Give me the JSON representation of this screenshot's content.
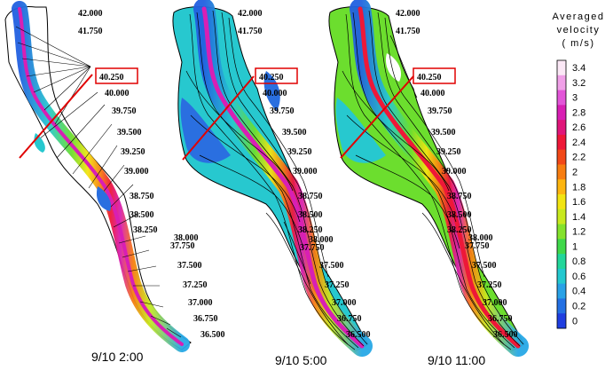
{
  "panels": [
    {
      "time_label": "9/10 2:00",
      "section_labels": [
        "42.000",
        "41.750",
        "40.250",
        "40.000",
        "39.750",
        "39.500",
        "39.250",
        "39.000",
        "38.750",
        "38.500",
        "38.250",
        "38.000",
        "37.750",
        "37.500",
        "37.250",
        "37.000",
        "36.750",
        "36.500"
      ],
      "highlighted_section": "40.250",
      "flow_shading": "sparse",
      "has_streamlines": false
    },
    {
      "time_label": "9/10 5:00",
      "section_labels": [
        "42.000",
        "41.750",
        "40.250",
        "40.000",
        "39.750",
        "39.500",
        "39.250",
        "39.000",
        "38.750",
        "38.500",
        "38.250",
        "38.000",
        "37.750",
        "37.500",
        "37.250",
        "37.000",
        "36.750",
        "36.500"
      ],
      "highlighted_section": "40.250",
      "flow_shading": "full",
      "has_streamlines": true
    },
    {
      "time_label": "9/10 11:00",
      "section_labels": [
        "42.000",
        "41.750",
        "40.250",
        "40.000",
        "39.750",
        "39.500",
        "39.250",
        "39.000",
        "38.750",
        "38.500",
        "38.250",
        "38.000",
        "37.750",
        "37.500",
        "37.250",
        "37.000",
        "36.750",
        "36.500"
      ],
      "highlighted_section": "40.250",
      "flow_shading": "full",
      "has_streamlines": true
    }
  ],
  "legend": {
    "title_lines": [
      "Averaged",
      "velocity",
      "( m/s)"
    ],
    "tick_labels": [
      "3.4",
      "3.2",
      "3",
      "2.8",
      "2.6",
      "2.4",
      "2.2",
      "2",
      "1.8",
      "1.6",
      "1.4",
      "1.2",
      "1",
      "0.8",
      "0.6",
      "0.4",
      "0.2",
      "0"
    ],
    "colors_top_to_bottom": [
      "#fbe8f6",
      "#f0a0e8",
      "#e255d8",
      "#d81fb4",
      "#e0167a",
      "#ee1838",
      "#f24818",
      "#f77d10",
      "#fdb50f",
      "#f2e411",
      "#c8e91e",
      "#84e22c",
      "#3fd84a",
      "#22d69a",
      "#23c8cf",
      "#28a1e6",
      "#2370e3",
      "#1f3ee0"
    ]
  },
  "colors": {
    "boundary": "#000000",
    "highlight": "#e00000",
    "background": "#ffffff"
  }
}
